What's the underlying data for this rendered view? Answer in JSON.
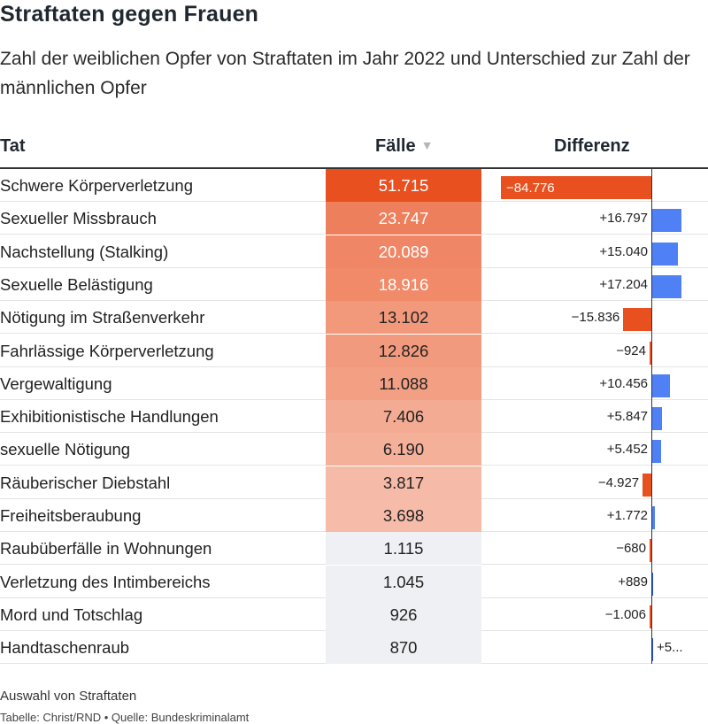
{
  "title": "Straftaten gegen Frauen",
  "subtitle": "Zahl der weiblichen Opfer von Straftaten im Jahr 2022 und Unterschied zur Zahl der männlichen Opfer",
  "table": {
    "col_tat": "Tat",
    "col_faelle": "Fälle",
    "col_differenz": "Differenz",
    "sort_icon": "▼"
  },
  "colors": {
    "heat_high": "#e8501f",
    "heat_low": "#ffffff",
    "low_cell": "#eef0f3",
    "positive": "#4f80f5",
    "negative": "#e8501f"
  },
  "chart_data": {
    "type": "table",
    "columns": [
      "Tat",
      "Fälle",
      "Differenz"
    ],
    "rows": [
      {
        "tat": "Schwere Körperverletzung",
        "faelle": "51.715",
        "value": 51715,
        "diff_label": "−84.776",
        "diff": -84776
      },
      {
        "tat": "Sexueller Missbrauch",
        "faelle": "23.747",
        "value": 23747,
        "diff_label": "+16.797",
        "diff": 16797
      },
      {
        "tat": "Nachstellung (Stalking)",
        "faelle": "20.089",
        "value": 20089,
        "diff_label": "+15.040",
        "diff": 15040
      },
      {
        "tat": "Sexuelle Belästigung",
        "faelle": "18.916",
        "value": 18916,
        "diff_label": "+17.204",
        "diff": 17204
      },
      {
        "tat": "Nötigung im Straßenverkehr",
        "faelle": "13.102",
        "value": 13102,
        "diff_label": "−15.836",
        "diff": -15836
      },
      {
        "tat": "Fahrlässige Körperverletzung",
        "faelle": "12.826",
        "value": 12826,
        "diff_label": "−924",
        "diff": -924
      },
      {
        "tat": "Vergewaltigung",
        "faelle": "11.088",
        "value": 11088,
        "diff_label": "+10.456",
        "diff": 10456
      },
      {
        "tat": "Exhibitionistische Handlungen",
        "faelle": "7.406",
        "value": 7406,
        "diff_label": "+5.847",
        "diff": 5847
      },
      {
        "tat": "sexuelle Nötigung",
        "faelle": "6.190",
        "value": 6190,
        "diff_label": "+5.452",
        "diff": 5452
      },
      {
        "tat": "Räuberischer Diebstahl",
        "faelle": "3.817",
        "value": 3817,
        "diff_label": "−4.927",
        "diff": -4927
      },
      {
        "tat": "Freiheitsberaubung",
        "faelle": "3.698",
        "value": 3698,
        "diff_label": "+1.772",
        "diff": 1772
      },
      {
        "tat": "Raubüberfälle in Wohnungen",
        "faelle": "1.115",
        "value": 1115,
        "diff_label": "−680",
        "diff": -680
      },
      {
        "tat": "Verletzung des Intimbereichs",
        "faelle": "1.045",
        "value": 1045,
        "diff_label": "+889",
        "diff": 889
      },
      {
        "tat": "Mord und Totschlag",
        "faelle": "926",
        "value": 926,
        "diff_label": "−1.006",
        "diff": -1006
      },
      {
        "tat": "Handtaschenraub",
        "faelle": "870",
        "value": 870,
        "diff_label": "+5...",
        "diff": 5
      }
    ]
  },
  "footnote": "Auswahl von Straftaten",
  "source": "Tabelle: Christ/RND • Quelle: Bundeskriminalamt"
}
